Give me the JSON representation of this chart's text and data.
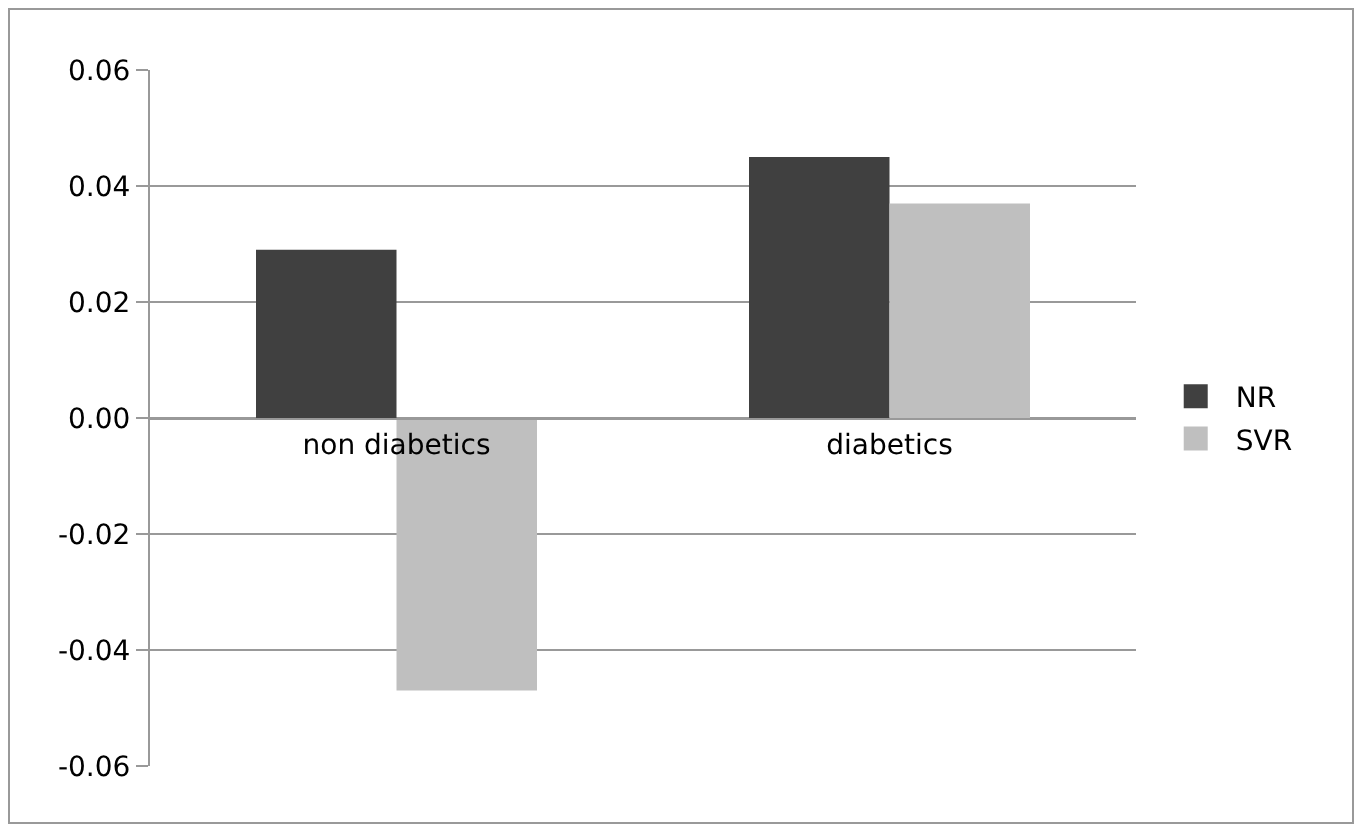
{
  "chart_data": {
    "type": "bar",
    "categories": [
      "non diabetics",
      "diabetics"
    ],
    "series": [
      {
        "name": "NR",
        "color": "#404040",
        "values": [
          0.029,
          0.045
        ]
      },
      {
        "name": "SVR",
        "color": "#bfbfbf",
        "values": [
          -0.047,
          0.037
        ]
      }
    ],
    "ylim": [
      -0.06,
      0.06
    ],
    "yticks": [
      {
        "value": -0.06,
        "label": "-0.06"
      },
      {
        "value": -0.04,
        "label": "-0.04"
      },
      {
        "value": -0.02,
        "label": "-0.02"
      },
      {
        "value": 0,
        "label": "0.00"
      },
      {
        "value": 0.02,
        "label": "0.02"
      },
      {
        "value": 0.04,
        "label": "0.04"
      },
      {
        "value": 0.06,
        "label": "0.06"
      }
    ],
    "grid": "y",
    "legend": "right"
  }
}
